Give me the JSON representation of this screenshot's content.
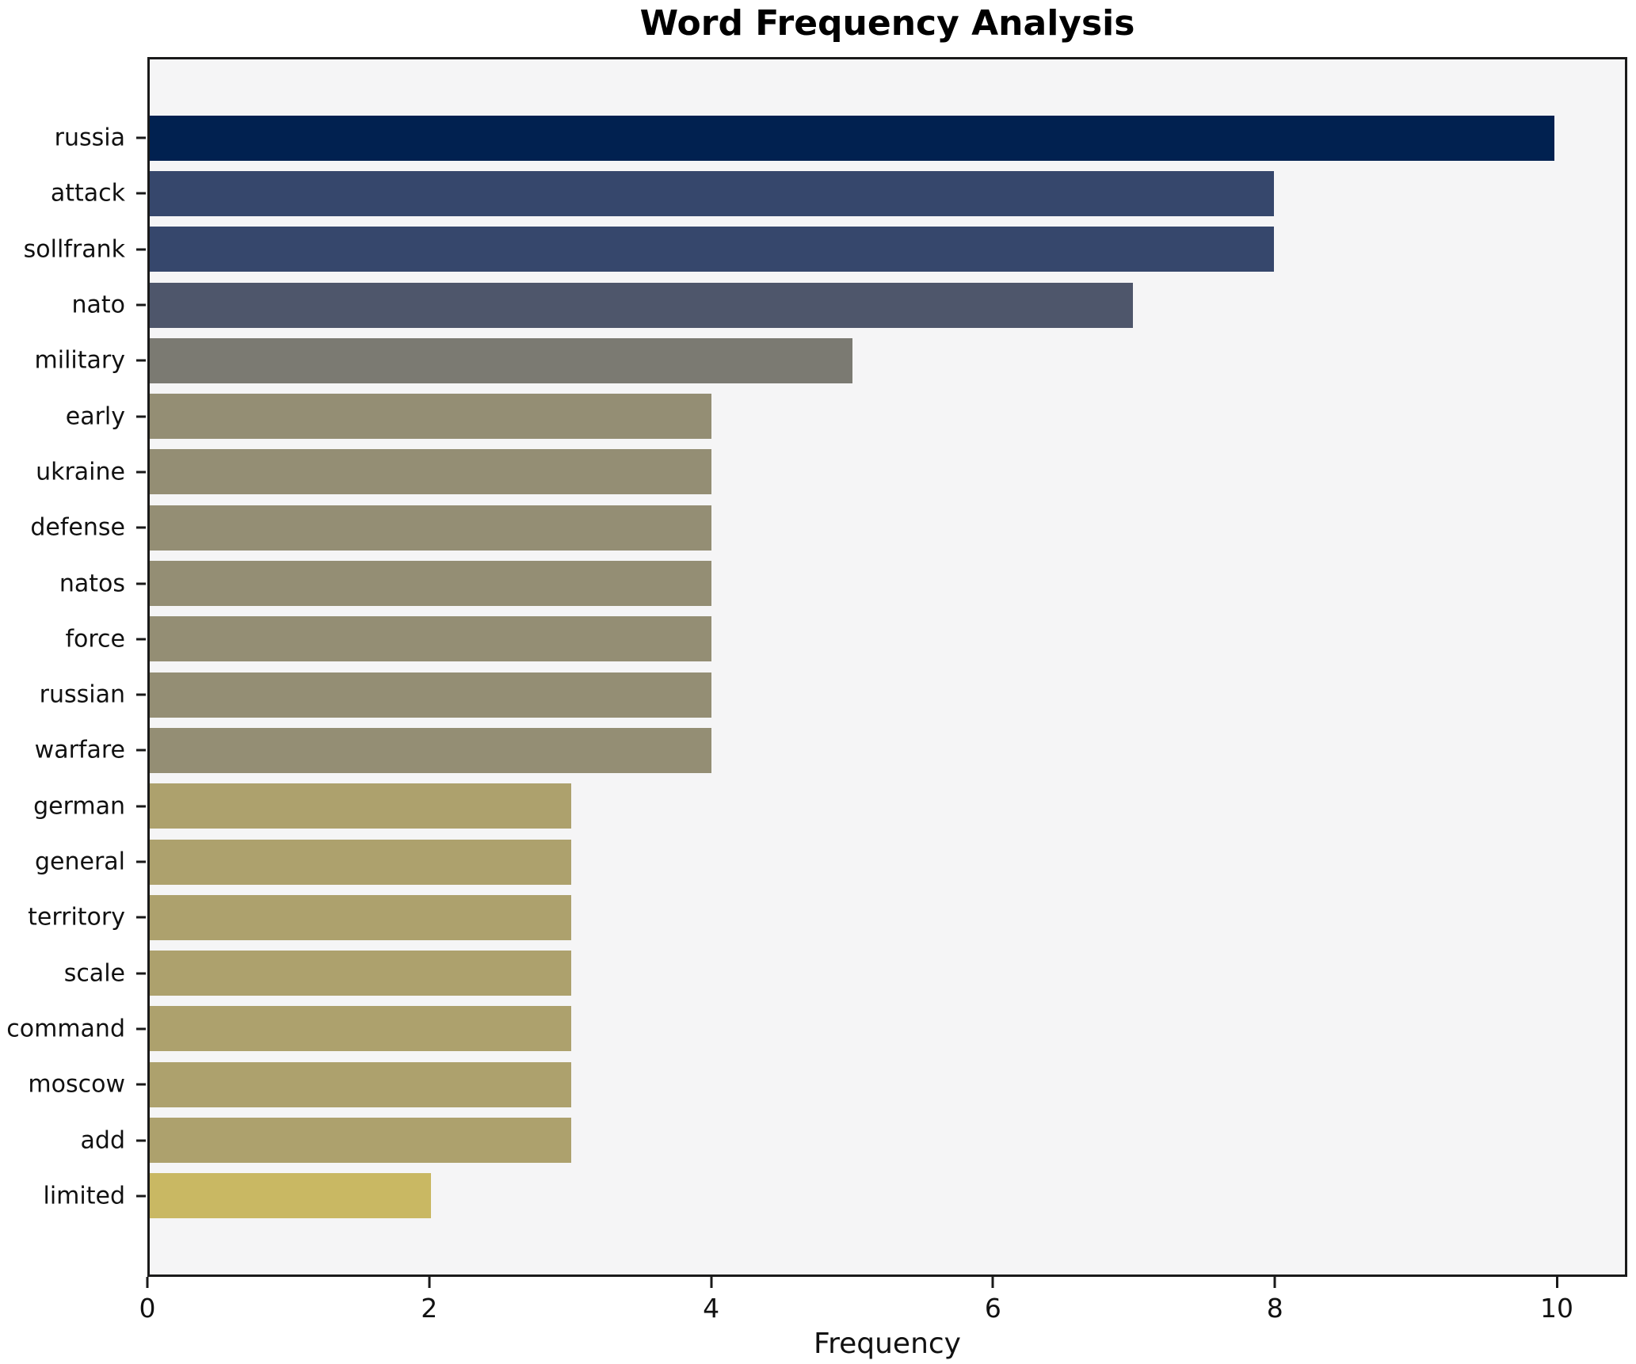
{
  "title": "Word Frequency Analysis",
  "chart_data": {
    "type": "bar",
    "orientation": "horizontal",
    "title": "Word Frequency Analysis",
    "xlabel": "Frequency",
    "ylabel": "",
    "categories": [
      "russia",
      "attack",
      "sollfrank",
      "nato",
      "military",
      "early",
      "ukraine",
      "defense",
      "natos",
      "force",
      "russian",
      "warfare",
      "german",
      "general",
      "territory",
      "scale",
      "command",
      "moscow",
      "add",
      "limited"
    ],
    "values": [
      10,
      8,
      8,
      7,
      5,
      4,
      4,
      4,
      4,
      4,
      4,
      4,
      3,
      3,
      3,
      3,
      3,
      3,
      3,
      2
    ],
    "bar_colors": [
      "#012150",
      "#36476c",
      "#36476c",
      "#4e566b",
      "#7b7a72",
      "#948e74",
      "#948e74",
      "#948e74",
      "#948e74",
      "#948e74",
      "#948e74",
      "#948e74",
      "#ada16d",
      "#ada16d",
      "#ada16d",
      "#ada16d",
      "#ada16d",
      "#ada16d",
      "#ada16d",
      "#c9b863"
    ],
    "xlim": [
      0,
      10.5
    ],
    "xticks": [
      0,
      2,
      4,
      6,
      8,
      10
    ],
    "grid": false,
    "legend": "none",
    "plot_background": "#f5f5f6",
    "spine_color": "#1a1a1a"
  }
}
